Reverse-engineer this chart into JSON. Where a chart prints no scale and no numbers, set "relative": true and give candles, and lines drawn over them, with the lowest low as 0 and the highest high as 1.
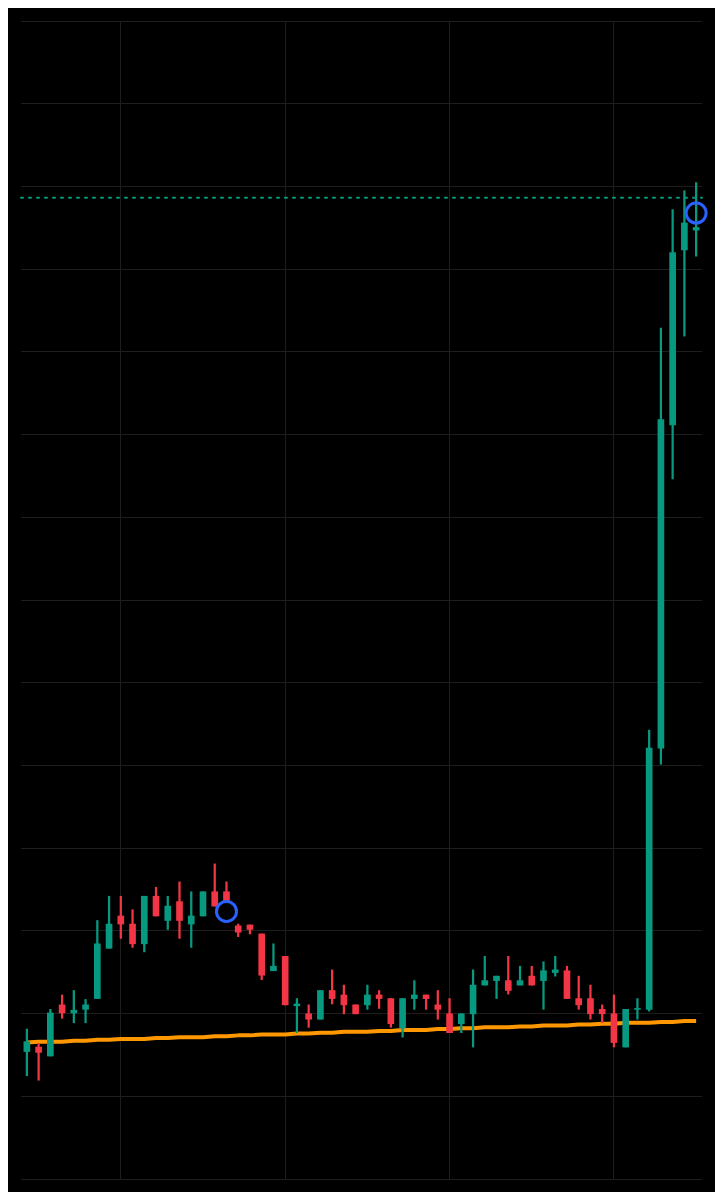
{
  "chart_data": {
    "type": "candlestick",
    "relative": true,
    "grid": true,
    "legend": false,
    "tick_labels": false,
    "categories": [
      null,
      null,
      null,
      null,
      null,
      null,
      null,
      null,
      null,
      null,
      null,
      null,
      null,
      null,
      null,
      null,
      null,
      null,
      null,
      null,
      null,
      null,
      null,
      null,
      null,
      null,
      null,
      null,
      null,
      null,
      null,
      null,
      null,
      null,
      null,
      null,
      null,
      null,
      null,
      null,
      null,
      null,
      null,
      null,
      null,
      null,
      null,
      null,
      null,
      null,
      null,
      null,
      null,
      null,
      null,
      null,
      null,
      null
    ],
    "ohlc": [
      [
        0.032,
        0.057,
        0.005,
        0.043
      ],
      [
        0.037,
        0.041,
        0,
        0.031
      ],
      [
        0.027,
        0.079,
        0.027,
        0.075
      ],
      [
        0.084,
        0.095,
        0.069,
        0.075
      ],
      [
        0.075,
        0.1,
        0.064,
        0.078
      ],
      [
        0.079,
        0.09,
        0.064,
        0.084
      ],
      [
        0.091,
        0.178,
        0.091,
        0.152
      ],
      [
        0.147,
        0.205,
        0.147,
        0.174
      ],
      [
        0.183,
        0.205,
        0.158,
        0.174
      ],
      [
        0.174,
        0.19,
        0.148,
        0.152
      ],
      [
        0.152,
        0.205,
        0.143,
        0.205
      ],
      [
        0.205,
        0.215,
        0.183,
        0.183
      ],
      [
        0.178,
        0.205,
        0.168,
        0.194
      ],
      [
        0.199,
        0.221,
        0.158,
        0.178
      ],
      [
        0.174,
        0.21,
        0.148,
        0.183
      ],
      [
        0.183,
        0.21,
        0.183,
        0.21
      ],
      [
        0.21,
        0.241,
        0.194,
        0.194
      ],
      [
        0.21,
        0.221,
        0.199,
        0.199
      ],
      [
        0.172,
        0.174,
        0.16,
        0.165
      ],
      [
        0.173,
        0.173,
        0.163,
        0.168
      ],
      [
        0.163,
        0.163,
        0.112,
        0.117
      ],
      [
        0.122,
        0.152,
        0.122,
        0.127
      ],
      [
        0.138,
        0.138,
        0.084,
        0.084
      ],
      [
        0.083,
        0.091,
        0.053,
        0.085
      ],
      [
        0.074,
        0.084,
        0.059,
        0.068
      ],
      [
        0.068,
        0.1,
        0.068,
        0.1
      ],
      [
        0.1,
        0.123,
        0.085,
        0.091
      ],
      [
        0.095,
        0.106,
        0.074,
        0.084
      ],
      [
        0.084,
        0.084,
        0.074,
        0.074
      ],
      [
        0.084,
        0.106,
        0.079,
        0.095
      ],
      [
        0.095,
        0.1,
        0.08,
        0.091
      ],
      [
        0.091,
        0.091,
        0.059,
        0.063
      ],
      [
        0.058,
        0.091,
        0.048,
        0.091
      ],
      [
        0.091,
        0.111,
        0.079,
        0.095
      ],
      [
        0.095,
        0.095,
        0.079,
        0.091
      ],
      [
        0.084,
        0.1,
        0.068,
        0.079
      ],
      [
        0.074,
        0.091,
        0.053,
        0.053
      ],
      [
        0.063,
        0.074,
        0.053,
        0.074
      ],
      [
        0.074,
        0.123,
        0.037,
        0.106
      ],
      [
        0.106,
        0.138,
        0.106,
        0.111
      ],
      [
        0.111,
        0.116,
        0.091,
        0.116
      ],
      [
        0.111,
        0.138,
        0.096,
        0.1
      ],
      [
        0.106,
        0.127,
        0.106,
        0.111
      ],
      [
        0.116,
        0.127,
        0.106,
        0.106
      ],
      [
        0.111,
        0.132,
        0.079,
        0.122
      ],
      [
        0.12,
        0.138,
        0.116,
        0.123
      ],
      [
        0.122,
        0.127,
        0.091,
        0.091
      ],
      [
        0.091,
        0.116,
        0.079,
        0.084
      ],
      [
        0.091,
        0.106,
        0.068,
        0.074
      ],
      [
        0.079,
        0.084,
        0.064,
        0.074
      ],
      [
        0.074,
        0.095,
        0.037,
        0.042
      ],
      [
        0.037,
        0.079,
        0.037,
        0.079
      ],
      [
        0.079,
        0.091,
        0.068,
        0.08
      ],
      [
        0.079,
        0.39,
        0.077,
        0.37
      ],
      [
        0.37,
        0.838,
        0.352,
        0.736
      ],
      [
        0.73,
        0.97,
        0.67,
        0.922
      ],
      [
        0.925,
        0.991,
        0.829,
        0.955
      ],
      [
        0.947,
        1,
        0.918,
        0.95
      ]
    ],
    "colors": [
      "#089981",
      "#f23645",
      "#089981",
      "#f23645",
      "#089981",
      "#089981",
      "#089981",
      "#089981",
      "#f23645",
      "#f23645",
      "#089981",
      "#f23645",
      "#089981",
      "#f23645",
      "#089981",
      "#089981",
      "#f23645",
      "#f23645",
      "#f23645",
      "#f23645",
      "#f23645",
      "#089981",
      "#f23645",
      "#089981",
      "#f23645",
      "#089981",
      "#f23645",
      "#f23645",
      "#f23645",
      "#089981",
      "#f23645",
      "#f23645",
      "#089981",
      "#089981",
      "#f23645",
      "#f23645",
      "#f23645",
      "#089981",
      "#089981",
      "#089981",
      "#089981",
      "#f23645",
      "#089981",
      "#f23645",
      "#089981",
      "#089981",
      "#f23645",
      "#f23645",
      "#f23645",
      "#f23645",
      "#f23645",
      "#089981",
      "#089981",
      "#089981",
      "#089981",
      "#089981",
      "#089981",
      "#089981"
    ],
    "series": [
      {
        "type": "line",
        "color": "#ff9800",
        "values": [
          0.042,
          0.043,
          0.043,
          0.043,
          0.044,
          0.044,
          0.045,
          0.045,
          0.046,
          0.046,
          0.046,
          0.047,
          0.047,
          0.048,
          0.048,
          0.048,
          0.049,
          0.049,
          0.05,
          0.05,
          0.051,
          0.051,
          0.051,
          0.052,
          0.052,
          0.053,
          0.053,
          0.054,
          0.054,
          0.054,
          0.055,
          0.055,
          0.056,
          0.056,
          0.056,
          0.057,
          0.057,
          0.058,
          0.058,
          0.059,
          0.059,
          0.059,
          0.06,
          0.06,
          0.061,
          0.061,
          0.061,
          0.062,
          0.062,
          0.063,
          0.063,
          0.064,
          0.064,
          0.064,
          0.065,
          0.065,
          0.066,
          0.066
        ],
        "marker": "none",
        "line_style": "solid"
      },
      {
        "type": "scatter",
        "color": "#2962ff",
        "values": [
          null,
          null,
          null,
          null,
          null,
          null,
          null,
          null,
          null,
          null,
          null,
          null,
          null,
          null,
          null,
          null,
          null,
          0.188,
          null,
          null,
          null,
          null,
          null,
          null,
          null,
          null,
          null,
          null,
          null,
          null,
          null,
          null,
          null,
          null,
          null,
          null,
          null,
          null,
          null,
          null,
          null,
          null,
          null,
          null,
          null,
          null,
          null,
          null,
          null,
          null,
          null,
          null,
          null,
          null,
          null,
          null,
          null,
          0.966
        ],
        "marker": "circle"
      }
    ],
    "ref_lines": [
      {
        "axis": "y",
        "value": 0.983,
        "color": "#089981",
        "line_style": "dotted"
      }
    ]
  }
}
